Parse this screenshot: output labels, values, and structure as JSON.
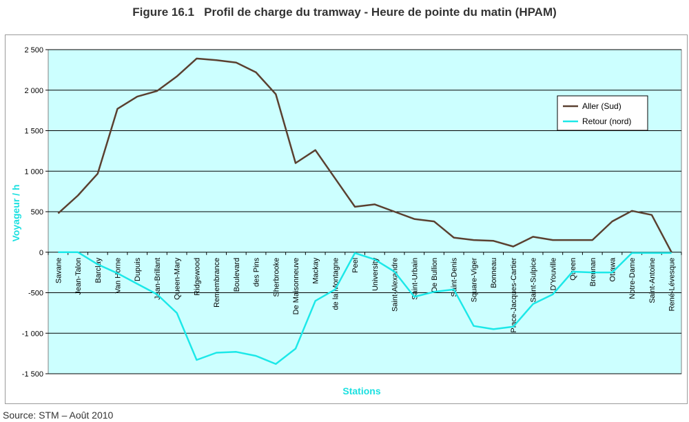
{
  "figure": {
    "title": "Figure 16.1   Profil de charge du tramway - Heure de pointe du matin (HPAM)",
    "source": "Source: STM – Août 2010"
  },
  "colors": {
    "plot_background": "#ccffff",
    "gridline": "#000000",
    "aller": "#5a4030",
    "retour": "#1ce8e8",
    "axis_title": "#1ce0e0"
  },
  "chart_data": {
    "type": "line",
    "title": "Figure 16.1   Profil de charge du tramway - Heure de pointe du matin (HPAM)",
    "xlabel": "Stations",
    "ylabel": "Voyageur / h",
    "ylim": [
      -1500,
      2500
    ],
    "yticks": [
      2500,
      2000,
      1500,
      1000,
      500,
      0,
      -500,
      -1000,
      -1500
    ],
    "ytick_labels": [
      "2 500",
      "2 000",
      "1 500",
      "1 000",
      "500",
      "0",
      "-500",
      "-1 000",
      "-1 500"
    ],
    "grid": true,
    "legend_position": "right",
    "categories": [
      "Savane",
      "Jean-Talon",
      "Barclay",
      "Van Horne",
      "Dupuis",
      "Jean-Brillant",
      "Queen-Mary",
      "Ridgewood",
      "Remembrance",
      "Boulevard",
      "des Pins",
      "Sherbrooke",
      "De Maisonneuve",
      "Mackay",
      "de la Montagne",
      "Peel",
      "University",
      "Saint-Alexandre",
      "Saint-Urbain",
      "De Bullion",
      "Saint-Denis",
      "Square-Viger",
      "Bonneau",
      "Place-Jacques-Cartier",
      "Saint-Sulpice",
      "D'Youville",
      "Queen",
      "Brennan",
      "Ottawa",
      "Notre-Dame",
      "Saint-Antoine",
      "René-Lévesque"
    ],
    "series": [
      {
        "name": "Aller (Sud)",
        "color": "#5a4030",
        "values": [
          480,
          700,
          970,
          1770,
          1920,
          1990,
          2170,
          2390,
          2370,
          2340,
          2220,
          1950,
          1100,
          1260,
          910,
          560,
          590,
          500,
          410,
          380,
          180,
          150,
          140,
          70,
          190,
          150,
          150,
          150,
          380,
          510,
          460,
          0
        ]
      },
      {
        "name": "Retour (nord)",
        "color": "#1ce8e8",
        "values": [
          0,
          0,
          -150,
          -260,
          -390,
          -520,
          -750,
          -1330,
          -1240,
          -1230,
          -1280,
          -1380,
          -1190,
          -600,
          -460,
          -10,
          -90,
          -240,
          -550,
          -490,
          -460,
          -910,
          -950,
          -920,
          -640,
          -520,
          -240,
          -250,
          -250,
          -10,
          -10,
          -10
        ]
      }
    ]
  }
}
